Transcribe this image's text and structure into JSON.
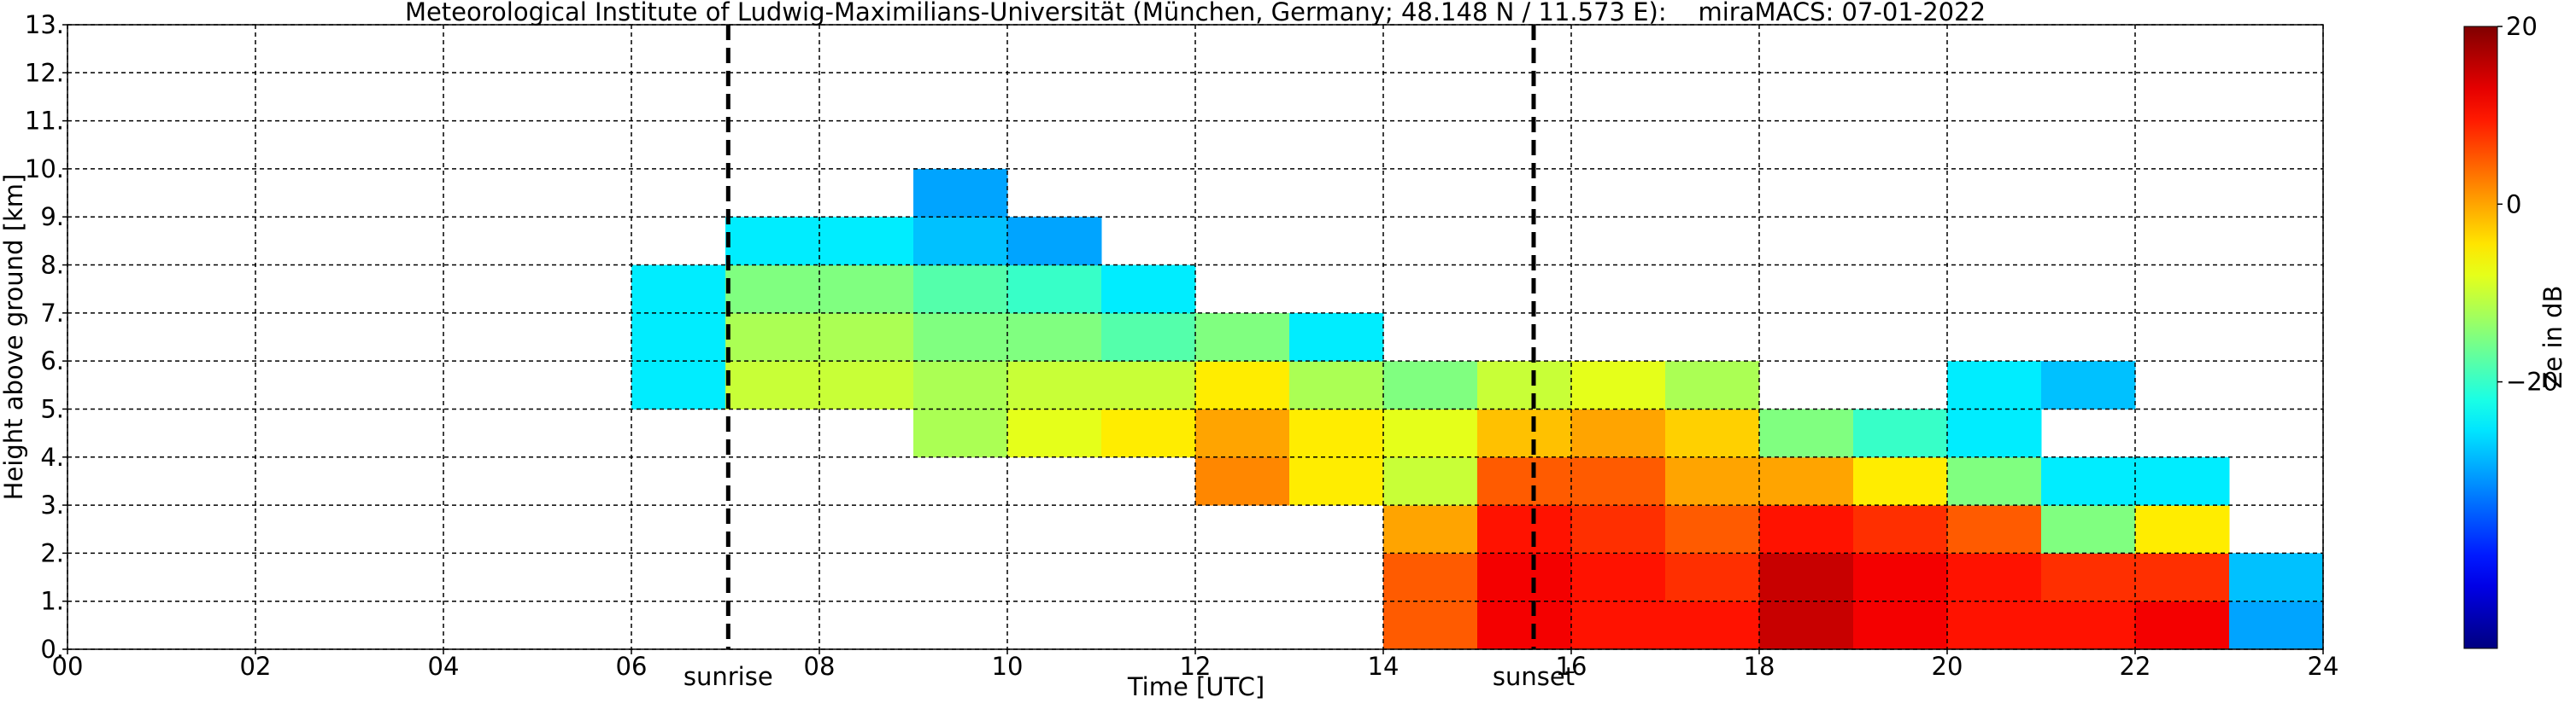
{
  "chart_data": {
    "type": "heatmap",
    "title": "Meteorological Institute of Ludwig-Maximilians-Universität (München, Germany; 48.148 N / 11.573 E):    miraMACS: 07-01-2022",
    "x_label": "Time [UTC]",
    "y_label": "Height above ground [km]",
    "colorbar_label": "Ze in dB",
    "x_bins": [
      0,
      1,
      2,
      3,
      4,
      5,
      6,
      7,
      8,
      9,
      10,
      11,
      12,
      13,
      14,
      15,
      16,
      17,
      18,
      19,
      20,
      21,
      22,
      23,
      24
    ],
    "y_bins": [
      0,
      1,
      2,
      3,
      4,
      5,
      6,
      7,
      8,
      9,
      10,
      11,
      12,
      13
    ],
    "values": [
      [
        null,
        null,
        null,
        null,
        null,
        null,
        null,
        null,
        null,
        null,
        null,
        null,
        null,
        null,
        5,
        12,
        10,
        10,
        15,
        12,
        10,
        10,
        12,
        -30
      ],
      [
        null,
        null,
        null,
        null,
        null,
        null,
        null,
        null,
        null,
        null,
        null,
        null,
        null,
        null,
        5,
        12,
        10,
        8,
        15,
        12,
        10,
        8,
        8,
        -28
      ],
      [
        null,
        null,
        null,
        null,
        null,
        null,
        null,
        null,
        null,
        null,
        null,
        null,
        null,
        null,
        0,
        10,
        8,
        5,
        10,
        8,
        5,
        -15,
        -5,
        null
      ],
      [
        null,
        null,
        null,
        null,
        null,
        null,
        null,
        null,
        null,
        null,
        null,
        null,
        2,
        -5,
        -10,
        5,
        5,
        0,
        0,
        -5,
        -15,
        -25,
        -25,
        null
      ],
      [
        null,
        null,
        null,
        null,
        null,
        null,
        null,
        null,
        null,
        -12,
        -8,
        -5,
        0,
        -5,
        -8,
        -2,
        0,
        -3,
        -15,
        -20,
        -25,
        null,
        null,
        null
      ],
      [
        null,
        null,
        null,
        null,
        null,
        null,
        -25,
        -10,
        -10,
        -12,
        -10,
        -10,
        -5,
        -12,
        -15,
        -10,
        -8,
        -12,
        null,
        null,
        -25,
        -28,
        null,
        null
      ],
      [
        null,
        null,
        null,
        null,
        null,
        null,
        -25,
        -12,
        -12,
        -15,
        -15,
        -18,
        -15,
        -25,
        null,
        null,
        null,
        null,
        null,
        null,
        null,
        null,
        null,
        null
      ],
      [
        null,
        null,
        null,
        null,
        null,
        null,
        -25,
        -15,
        -15,
        -18,
        -20,
        -25,
        null,
        null,
        null,
        null,
        null,
        null,
        null,
        null,
        null,
        null,
        null,
        null
      ],
      [
        null,
        null,
        null,
        null,
        null,
        null,
        null,
        -25,
        -25,
        -28,
        -30,
        null,
        null,
        null,
        null,
        null,
        null,
        null,
        null,
        null,
        null,
        null,
        null,
        null
      ],
      [
        null,
        null,
        null,
        null,
        null,
        null,
        null,
        null,
        null,
        -30,
        null,
        null,
        null,
        null,
        null,
        null,
        null,
        null,
        null,
        null,
        null,
        null,
        null,
        null
      ],
      [
        null,
        null,
        null,
        null,
        null,
        null,
        null,
        null,
        null,
        null,
        null,
        null,
        null,
        null,
        null,
        null,
        null,
        null,
        null,
        null,
        null,
        null,
        null,
        null
      ],
      [
        null,
        null,
        null,
        null,
        null,
        null,
        null,
        null,
        null,
        null,
        null,
        null,
        null,
        null,
        null,
        null,
        null,
        null,
        null,
        null,
        null,
        null,
        null,
        null
      ],
      [
        null,
        null,
        null,
        null,
        null,
        null,
        null,
        null,
        null,
        null,
        null,
        null,
        null,
        null,
        null,
        null,
        null,
        null,
        null,
        null,
        null,
        null,
        null,
        null
      ]
    ],
    "colormap": "jet",
    "clim": [
      -50,
      20
    ],
    "cticks": [
      {
        "value": 20,
        "label": "20"
      },
      {
        "value": 0,
        "label": "0"
      },
      {
        "value": -20,
        "label": "−20"
      }
    ],
    "xlim": [
      0,
      24
    ],
    "xticks": [
      {
        "value": 0,
        "label": "00"
      },
      {
        "value": 2,
        "label": "02"
      },
      {
        "value": 4,
        "label": "04"
      },
      {
        "value": 6,
        "label": "06"
      },
      {
        "value": 8,
        "label": "08"
      },
      {
        "value": 10,
        "label": "10"
      },
      {
        "value": 12,
        "label": "12"
      },
      {
        "value": 14,
        "label": "14"
      },
      {
        "value": 16,
        "label": "16"
      },
      {
        "value": 18,
        "label": "18"
      },
      {
        "value": 20,
        "label": "20"
      },
      {
        "value": 22,
        "label": "22"
      },
      {
        "value": 24,
        "label": "24"
      }
    ],
    "ylim": [
      0,
      13
    ],
    "yticks": [
      {
        "value": 0,
        "label": "0."
      },
      {
        "value": 1,
        "label": "1."
      },
      {
        "value": 2,
        "label": "2."
      },
      {
        "value": 3,
        "label": "3."
      },
      {
        "value": 4,
        "label": "4."
      },
      {
        "value": 5,
        "label": "5."
      },
      {
        "value": 6,
        "label": "6."
      },
      {
        "value": 7,
        "label": "7."
      },
      {
        "value": 8,
        "label": "8."
      },
      {
        "value": 9,
        "label": "9."
      },
      {
        "value": 10,
        "label": "10."
      },
      {
        "value": 11,
        "label": "11."
      },
      {
        "value": 12,
        "label": "12."
      },
      {
        "value": 13,
        "label": "13."
      }
    ],
    "grid": true,
    "annotations": [
      {
        "text": "sunrise",
        "x": 7.03
      },
      {
        "text": "sunset",
        "x": 15.6
      }
    ]
  }
}
